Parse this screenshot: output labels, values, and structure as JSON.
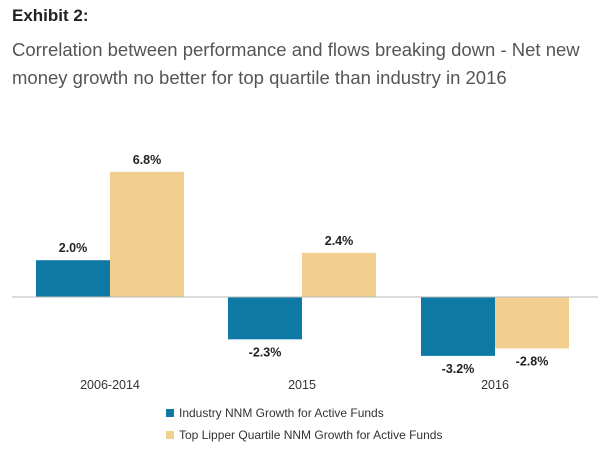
{
  "header": {
    "exhibit": "Exhibit 2:",
    "title": "Correlation between performance and flows breaking down - Net new money growth no better for top quartile than industry in 2016"
  },
  "colors": {
    "industry": "#0f79a6",
    "top_quartile": "#f2cf8f",
    "baseline": "#b7b7b7"
  },
  "chart_data": {
    "type": "bar",
    "title": "Correlation between performance and flows breaking down - Net new money growth no better for top quartile than industry in 2016",
    "xlabel": "",
    "ylabel": "",
    "categories": [
      "2006-2014",
      "2015",
      "2016"
    ],
    "series": [
      {
        "name": "Industry NNM Growth for Active Funds",
        "values": [
          2.0,
          -2.3,
          -3.2
        ],
        "labels": [
          "2.0%",
          "-2.3%",
          "-3.2%"
        ]
      },
      {
        "name": "Top Lipper Quartile NNM Growth for Active Funds",
        "values": [
          6.8,
          2.4,
          -2.8
        ],
        "labels": [
          "6.8%",
          "2.4%",
          "-2.8%"
        ]
      }
    ],
    "ylim": [
      -4.5,
      8
    ],
    "grid": false,
    "legend": "bottom"
  }
}
